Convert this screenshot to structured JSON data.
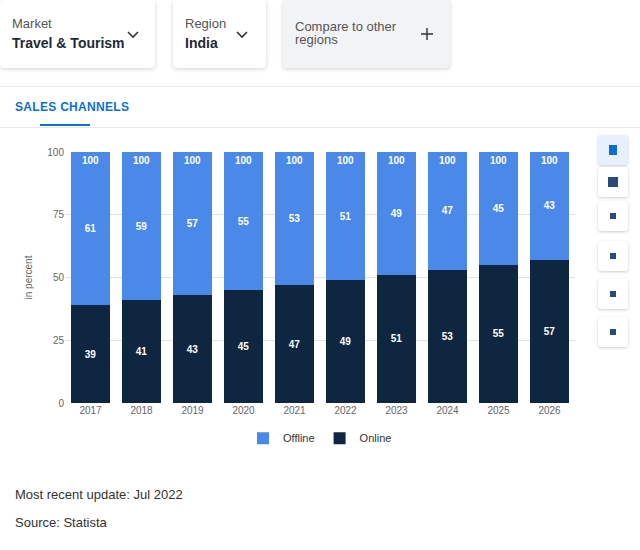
{
  "header": {
    "filters": [
      {
        "label": "Market",
        "value": "Travel & Tourism"
      },
      {
        "label": "Region",
        "value": "India"
      }
    ],
    "compare": "Compare to other regions",
    "tab": "SALES CHANNELS"
  },
  "footer": {
    "update": "Most recent update: Jul 2022",
    "source": "Source: Statista"
  },
  "chart_data": {
    "type": "bar",
    "stacked": true,
    "categories": [
      "2017",
      "2018",
      "2019",
      "2020",
      "2021",
      "2022",
      "2023",
      "2024",
      "2025",
      "2026"
    ],
    "y_label": "in percent",
    "series": [
      {
        "name": "Offline",
        "color": "#4a89e8",
        "values": [
          61,
          59,
          57,
          55,
          53,
          51,
          49,
          47,
          45,
          43
        ]
      },
      {
        "name": "Online",
        "color": "#0f2640",
        "values": [
          39,
          41,
          43,
          45,
          47,
          49,
          51,
          53,
          55,
          57
        ]
      }
    ],
    "totals": [
      100,
      100,
      100,
      100,
      100,
      100,
      100,
      100,
      100,
      100
    ],
    "ylim": [
      0,
      100
    ],
    "yticks": [
      0,
      25,
      50,
      75,
      100
    ],
    "grid": true,
    "data_labels": true,
    "legend": "bottom"
  }
}
